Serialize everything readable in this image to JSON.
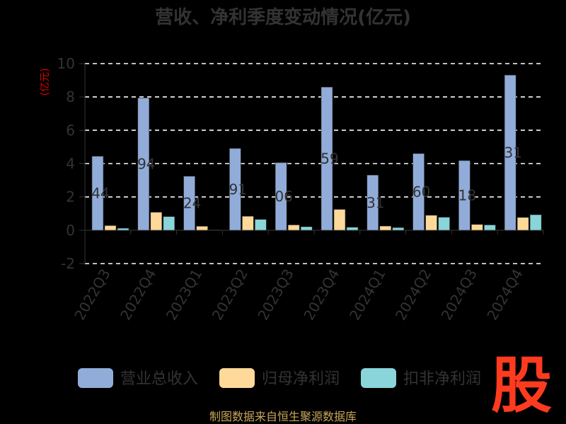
{
  "page": {
    "footer": "制图数据来自恒生聚源数据库",
    "logo": "股"
  },
  "colors": {
    "background": "#000000",
    "text": "#333333",
    "grid": "#ffffff",
    "ylabel": "#e00000",
    "footer": "#c8a65a",
    "logo": "#ff3b1f"
  },
  "chart_data": {
    "type": "bar",
    "title": "营收、净利季度变动情况(亿元)",
    "ylabel": "(亿元)",
    "xlabel": "",
    "ylim": [
      -2,
      10
    ],
    "yticks": [
      -2,
      0,
      2,
      4,
      6,
      8,
      10
    ],
    "grid": true,
    "legend_position": "bottom",
    "categories": [
      "2022Q3",
      "2022Q4",
      "2023Q1",
      "2023Q2",
      "2023Q3",
      "2023Q4",
      "2024Q1",
      "2024Q2",
      "2024Q3",
      "2024Q4"
    ],
    "series": [
      {
        "name": "营业总收入",
        "color": "#91acd9",
        "values": [
          4.44,
          7.94,
          3.24,
          4.91,
          4.06,
          8.59,
          3.31,
          4.6,
          4.18,
          9.31
        ],
        "labels": [
          "44",
          "94",
          "24",
          "91",
          "06",
          "59",
          "31",
          "60",
          "18",
          "31"
        ]
      },
      {
        "name": "归母净利润",
        "color": "#fed99a",
        "values": [
          0.28,
          1.08,
          0.24,
          0.84,
          0.32,
          1.25,
          0.25,
          0.9,
          0.35,
          0.77
        ]
      },
      {
        "name": "扣非净利润",
        "color": "#89d5d9",
        "values": [
          0.12,
          0.82,
          0.02,
          0.65,
          0.21,
          0.18,
          0.16,
          0.78,
          0.32,
          0.93
        ]
      }
    ]
  }
}
